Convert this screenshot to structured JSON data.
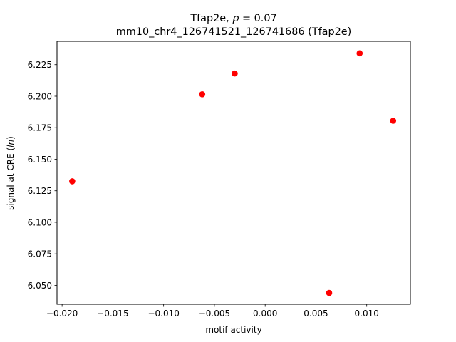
{
  "chart_data": {
    "type": "scatter",
    "title_lines": [
      {
        "prefix": "Tfap2e, ",
        "rho_symbol": "ρ",
        "rho_suffix": " = 0.07"
      },
      {
        "text": "mm10_chr4_126741521_126741686 (Tfap2e)"
      }
    ],
    "xlabel": "motif activity",
    "ylabel_prefix": "signal at CRE (",
    "ylabel_unit": "ln",
    "ylabel_suffix": ")",
    "xlim": [
      -0.0205,
      0.0143
    ],
    "ylim": [
      6.035,
      6.2435
    ],
    "x_ticks": [
      {
        "value": -0.02,
        "label": "−0.020"
      },
      {
        "value": -0.015,
        "label": "−0.015"
      },
      {
        "value": -0.01,
        "label": "−0.010"
      },
      {
        "value": -0.005,
        "label": "−0.005"
      },
      {
        "value": 0.0,
        "label": "0.000"
      },
      {
        "value": 0.005,
        "label": "0.005"
      },
      {
        "value": 0.01,
        "label": "0.010"
      }
    ],
    "y_ticks": [
      {
        "value": 6.05,
        "label": "6.050"
      },
      {
        "value": 6.075,
        "label": "6.075"
      },
      {
        "value": 6.1,
        "label": "6.100"
      },
      {
        "value": 6.125,
        "label": "6.125"
      },
      {
        "value": 6.15,
        "label": "6.150"
      },
      {
        "value": 6.175,
        "label": "6.175"
      },
      {
        "value": 6.2,
        "label": "6.200"
      },
      {
        "value": 6.225,
        "label": "6.225"
      }
    ],
    "points": [
      {
        "x": -0.019,
        "y": 6.1325
      },
      {
        "x": -0.0062,
        "y": 6.2015
      },
      {
        "x": -0.003,
        "y": 6.218
      },
      {
        "x": 0.0063,
        "y": 6.044
      },
      {
        "x": 0.0093,
        "y": 6.234
      },
      {
        "x": 0.0126,
        "y": 6.1805
      }
    ],
    "marker_color": "#ff0000",
    "grid": false
  }
}
